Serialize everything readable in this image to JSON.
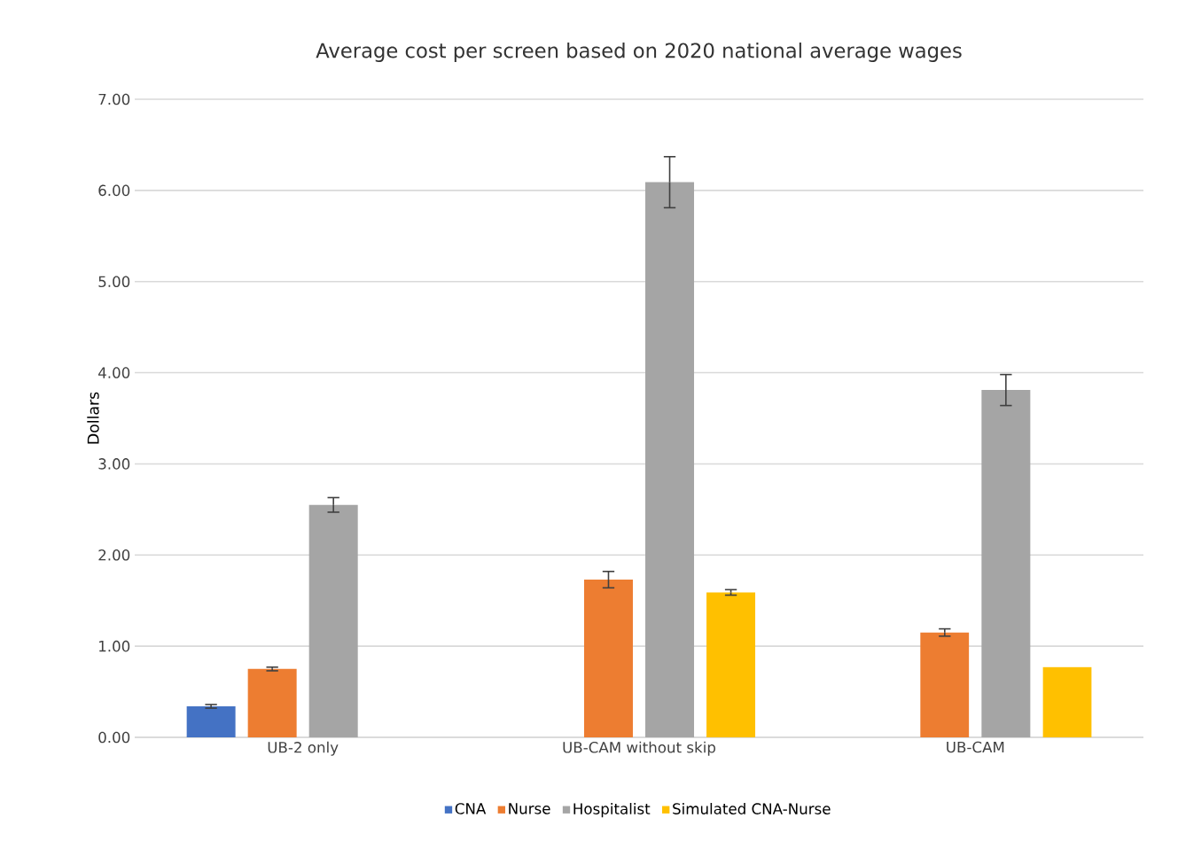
{
  "chart_data": {
    "type": "bar",
    "title": "Average cost per screen based on 2020 national average wages",
    "ylabel": "Dollars",
    "categories": [
      "UB-2 only",
      "UB-CAM without skip",
      "UB-CAM"
    ],
    "series": [
      {
        "name": "CNA",
        "color": "#4472c4",
        "values": [
          0.34,
          null,
          null
        ],
        "errors": [
          0.02,
          null,
          null
        ]
      },
      {
        "name": "Nurse",
        "color": "#ed7d31",
        "values": [
          0.75,
          1.73,
          1.15
        ],
        "errors": [
          0.02,
          0.09,
          0.04
        ]
      },
      {
        "name": "Hospitalist",
        "color": "#a5a5a5",
        "values": [
          2.55,
          6.09,
          3.81
        ],
        "errors": [
          0.08,
          0.28,
          0.17
        ]
      },
      {
        "name": "Simulated CNA-Nurse",
        "color": "#ffc000",
        "values": [
          null,
          1.59,
          0.77
        ],
        "errors": [
          null,
          0.03,
          null
        ]
      }
    ],
    "ylim": [
      0,
      7
    ],
    "yticks": [
      {
        "value": 0,
        "label": "0.00"
      },
      {
        "value": 1,
        "label": "1.00"
      },
      {
        "value": 2,
        "label": "2.00"
      },
      {
        "value": 3,
        "label": "3.00"
      },
      {
        "value": 4,
        "label": "4.00"
      },
      {
        "value": 5,
        "label": "5.00"
      },
      {
        "value": 6,
        "label": "6.00"
      },
      {
        "value": 7,
        "label": "7.00"
      }
    ],
    "grid": "y",
    "legend": "bottom"
  }
}
